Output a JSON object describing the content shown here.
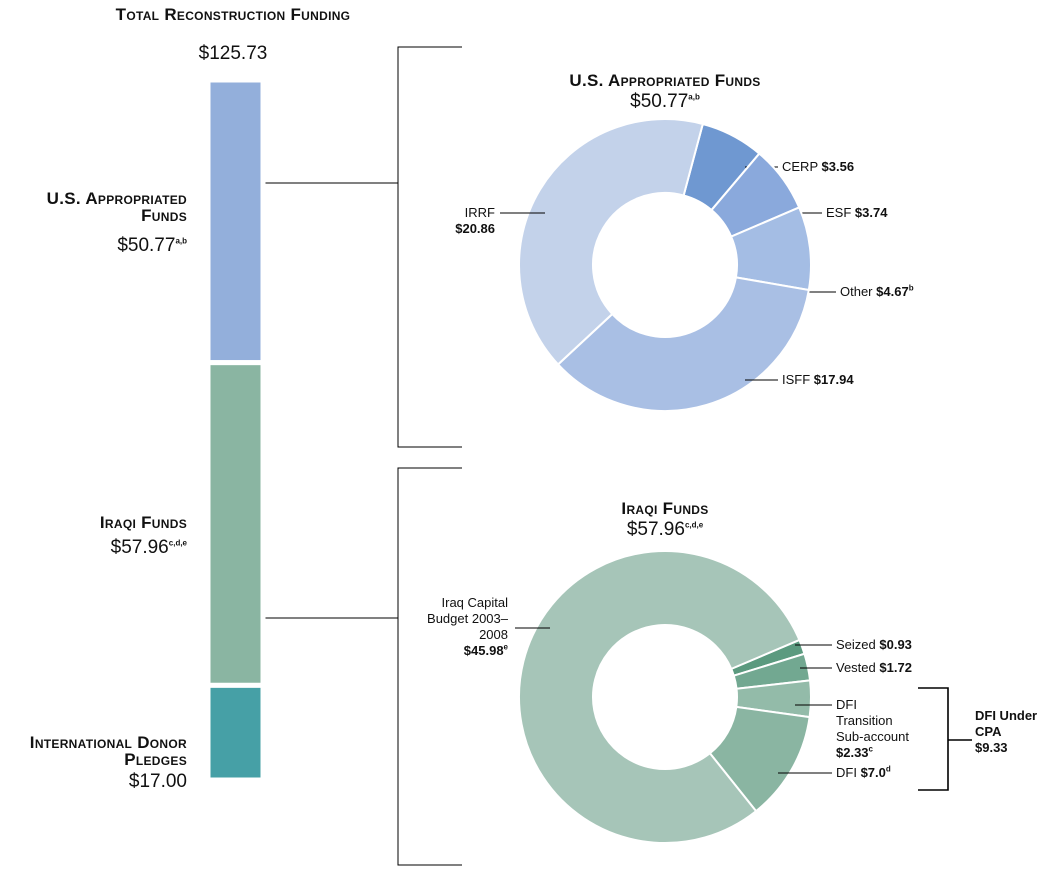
{
  "chart_data": [
    {
      "type": "bar",
      "stacked": true,
      "title": "Total Reconstruction Funding",
      "total": 125.73,
      "total_label": "$125.73",
      "categories": [
        "U.S. Appropriated Funds",
        "Iraqi Funds",
        "International Donor Pledges"
      ],
      "values": [
        50.77,
        57.96,
        17.0
      ],
      "value_labels": [
        "$50.77",
        "$57.96",
        "$17.00"
      ],
      "notes": [
        "a,b",
        "c,d,e",
        null
      ],
      "colors": [
        "#93afdb",
        "#8ab5a2",
        "#46a0a6"
      ]
    },
    {
      "type": "donut",
      "categories": [
        "CERP",
        "ESF",
        "Other",
        "ISFF",
        "IRRF"
      ],
      "values": [
        3.56,
        3.74,
        4.67,
        17.94,
        20.86
      ],
      "value_labels": [
        "$3.56",
        "$3.74",
        "$4.67",
        "$17.94",
        "$20.86"
      ],
      "notes": [
        null,
        null,
        "b",
        null,
        null
      ],
      "colors": [
        "#6f98d1",
        "#8aa9dc",
        "#a4bde4",
        "#a9bfe4",
        "#c3d2ea"
      ]
    },
    {
      "type": "donut",
      "categories": [
        "Seized",
        "Vested",
        "DFI Transition Sub-account",
        "DFI",
        "Iraq Capital Budget 2003–2008"
      ],
      "values": [
        0.93,
        1.72,
        2.33,
        7.0,
        45.98
      ],
      "value_labels": [
        "$0.93",
        "$1.72",
        "$2.33",
        "$7.0",
        "$45.98"
      ],
      "notes": [
        null,
        null,
        "c",
        "d",
        "e"
      ],
      "colors": [
        "#5b9a7f",
        "#72a891",
        "#93bba9",
        "#8ab5a2",
        "#a6c5b8"
      ],
      "groups": [
        {
          "label": "DFI Under CPA",
          "value": 9.33,
          "value_label": "$9.33"
        }
      ]
    }
  ]
}
